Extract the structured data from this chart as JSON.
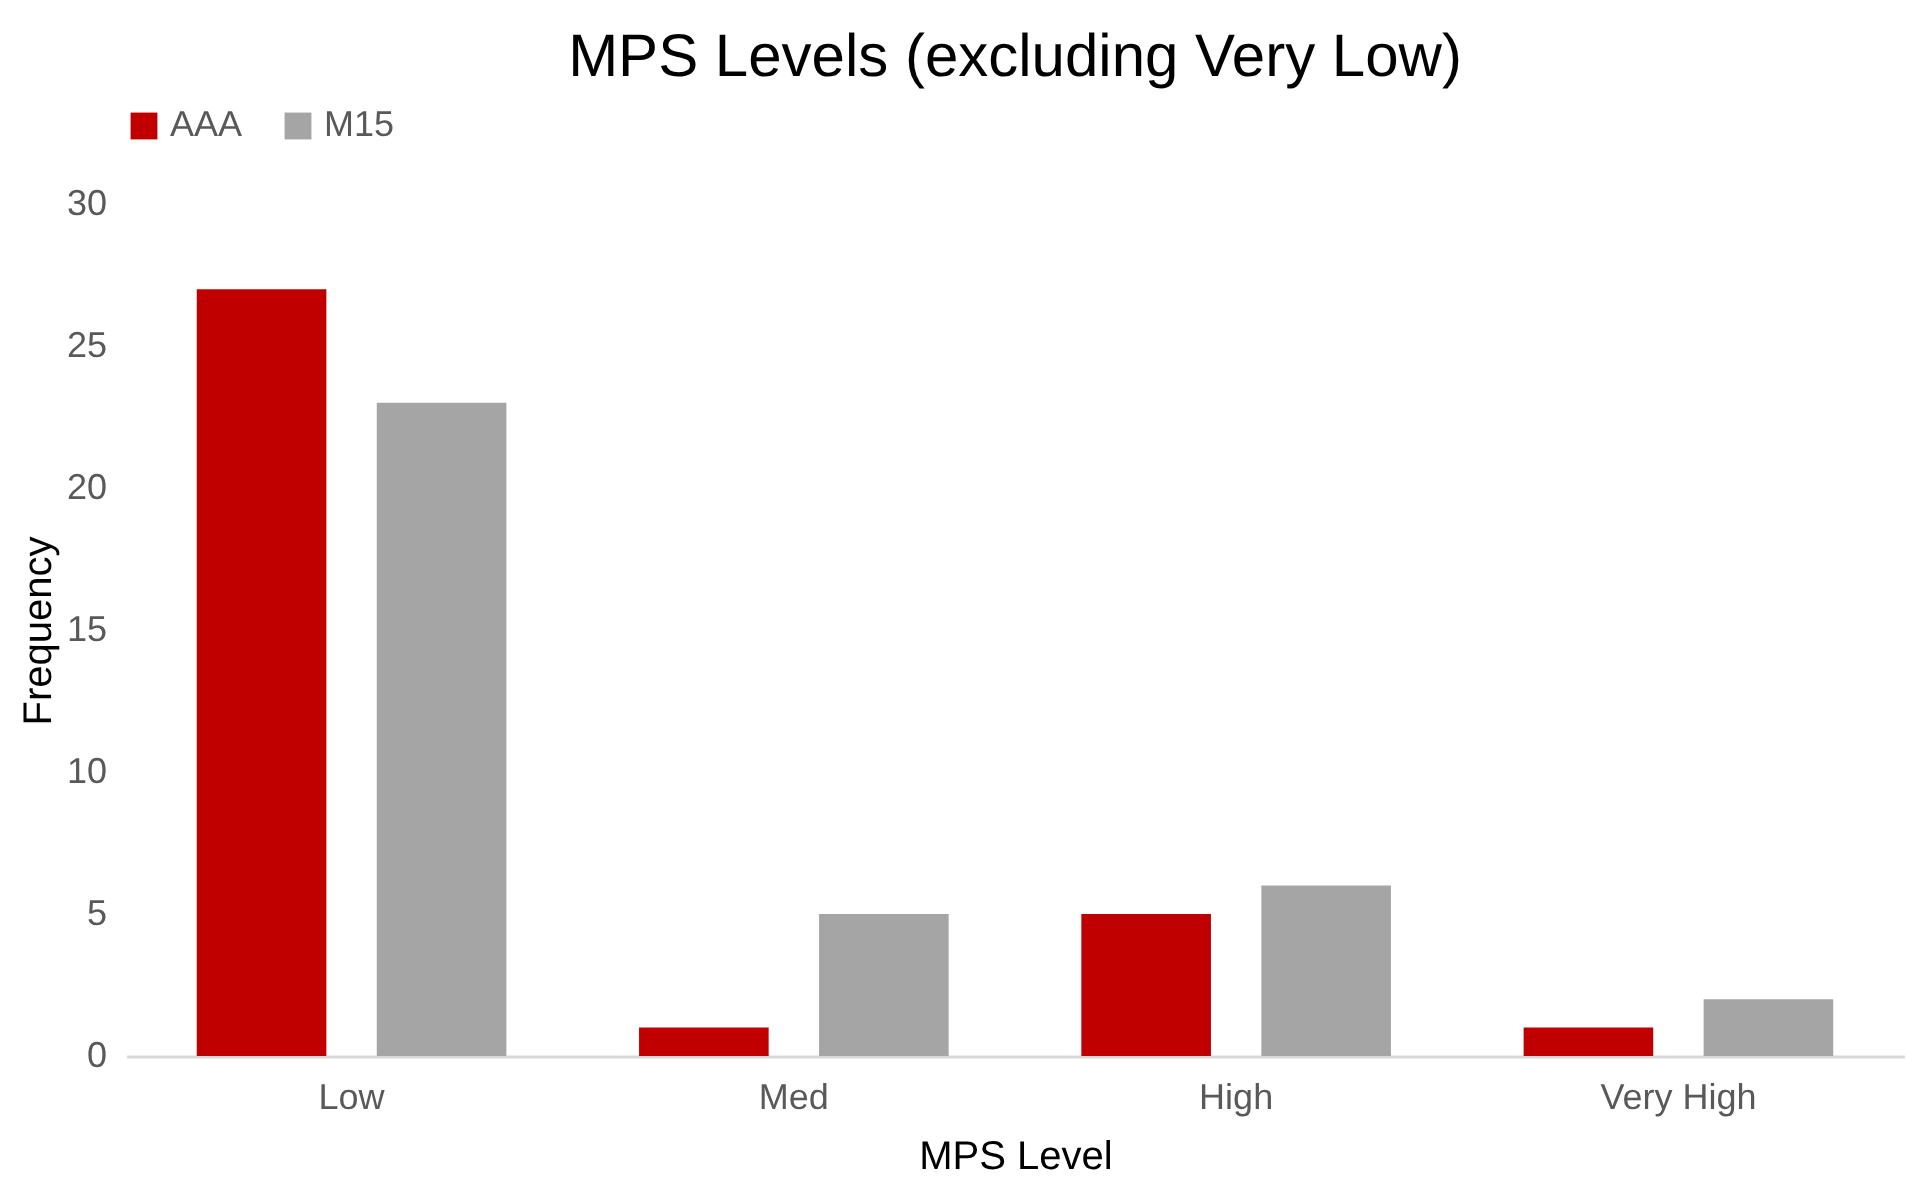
{
  "chart_data": {
    "type": "bar",
    "title": "MPS Levels (excluding Very Low)",
    "xlabel": "MPS Level",
    "ylabel": "Frequency",
    "categories": [
      "Low",
      "Med",
      "High",
      "Very High"
    ],
    "series": [
      {
        "name": "AAA",
        "color": "#c00000",
        "values": [
          27,
          1,
          5,
          1
        ]
      },
      {
        "name": "M15",
        "color": "#a5a5a5",
        "values": [
          23,
          5,
          6,
          2
        ]
      }
    ],
    "ylim": [
      0,
      30
    ],
    "yticks": [
      0,
      5,
      10,
      15,
      20,
      25,
      30
    ],
    "grid": false,
    "legend": "top"
  }
}
